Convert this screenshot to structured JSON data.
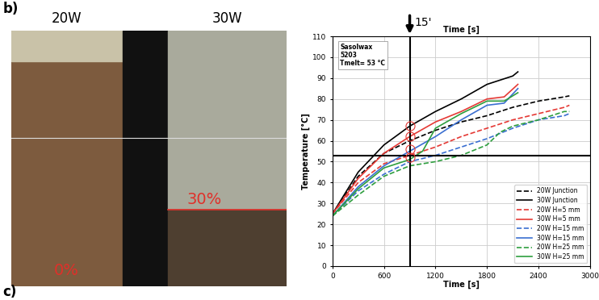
{
  "chart_data": {
    "type": "line",
    "title": "Time [s]",
    "x_label": "Time [s]",
    "y_label": "Temperature [°C]",
    "info_box": [
      "Sasolwax",
      "5203",
      "Tmelt= 53 °C"
    ],
    "xlim": [
      0,
      3000
    ],
    "xticks": [
      0,
      600,
      1200,
      1800,
      2400,
      3000
    ],
    "ylim": [
      0,
      110
    ],
    "yticks": [
      0,
      10,
      20,
      30,
      40,
      50,
      60,
      70,
      80,
      90,
      100,
      110
    ],
    "grid": true,
    "legend": "lower right",
    "reference_lines": {
      "x": 900,
      "x_label": "15'",
      "y": 53
    },
    "highlight_points": {
      "x": 900,
      "y": [
        67,
        62,
        56,
        52
      ],
      "color": "#e53935"
    },
    "series": [
      {
        "name": "20W Junction",
        "color": "#000000",
        "line_style": "dashed",
        "x": [
          0,
          300,
          600,
          900,
          1200,
          1500,
          1800,
          2100,
          2400,
          2700,
          2760
        ],
        "values": [
          25,
          43,
          54,
          60,
          65,
          69,
          72,
          76,
          79,
          81,
          81.5
        ]
      },
      {
        "name": "30W Junction",
        "color": "#000000",
        "line_style": "solid",
        "x": [
          0,
          300,
          600,
          900,
          1200,
          1500,
          1800,
          2100,
          2160
        ],
        "values": [
          25,
          45,
          58,
          67,
          74,
          80,
          87,
          91,
          93
        ]
      },
      {
        "name": "20W H=5 mm",
        "color": "#e53935",
        "line_style": "dashed",
        "x": [
          0,
          300,
          600,
          900,
          1200,
          1500,
          1800,
          2100,
          2400,
          2700,
          2760
        ],
        "values": [
          25,
          40,
          49,
          53,
          57,
          62,
          66,
          70,
          73,
          76,
          77
        ]
      },
      {
        "name": "30W H=5 mm",
        "color": "#e53935",
        "line_style": "solid",
        "x": [
          0,
          300,
          600,
          900,
          1200,
          1500,
          1800,
          2000,
          2160
        ],
        "values": [
          25,
          42,
          54,
          62,
          69,
          74,
          80,
          81,
          87
        ]
      },
      {
        "name": "20W H=15 mm",
        "color": "#3b6fd1",
        "line_style": "dashed",
        "x": [
          0,
          300,
          600,
          900,
          1200,
          1500,
          1800,
          2100,
          2400,
          2700,
          2760
        ],
        "values": [
          24,
          36,
          44,
          50,
          53,
          57,
          61,
          66,
          70,
          72,
          73
        ]
      },
      {
        "name": "30W H=15 mm",
        "color": "#3b6fd1",
        "line_style": "solid",
        "x": [
          0,
          300,
          600,
          900,
          1200,
          1500,
          1800,
          2000,
          2160
        ],
        "values": [
          24,
          38,
          48,
          55,
          62,
          70,
          77,
          78,
          85
        ]
      },
      {
        "name": "20W H=25 mm",
        "color": "#2e9e3e",
        "line_style": "dashed",
        "x": [
          0,
          300,
          600,
          900,
          1200,
          1500,
          1800,
          1950,
          2100,
          2400,
          2700,
          2760
        ],
        "values": [
          24,
          34,
          43,
          48,
          50,
          53,
          58,
          64,
          67,
          70,
          74,
          74
        ]
      },
      {
        "name": "30W H=25 mm",
        "color": "#2e9e3e",
        "line_style": "solid",
        "x": [
          0,
          300,
          600,
          900,
          1050,
          1200,
          1500,
          1800,
          2000,
          2160
        ],
        "values": [
          24,
          37,
          47,
          51,
          55,
          66,
          73,
          79,
          79,
          83
        ]
      }
    ]
  },
  "photo": {
    "left_label": "20W",
    "right_label": "30W",
    "left_fill": "0%",
    "right_fill": "30%",
    "fill_color": "#e0302a"
  },
  "panel_labels": [
    "b)",
    "c)"
  ]
}
